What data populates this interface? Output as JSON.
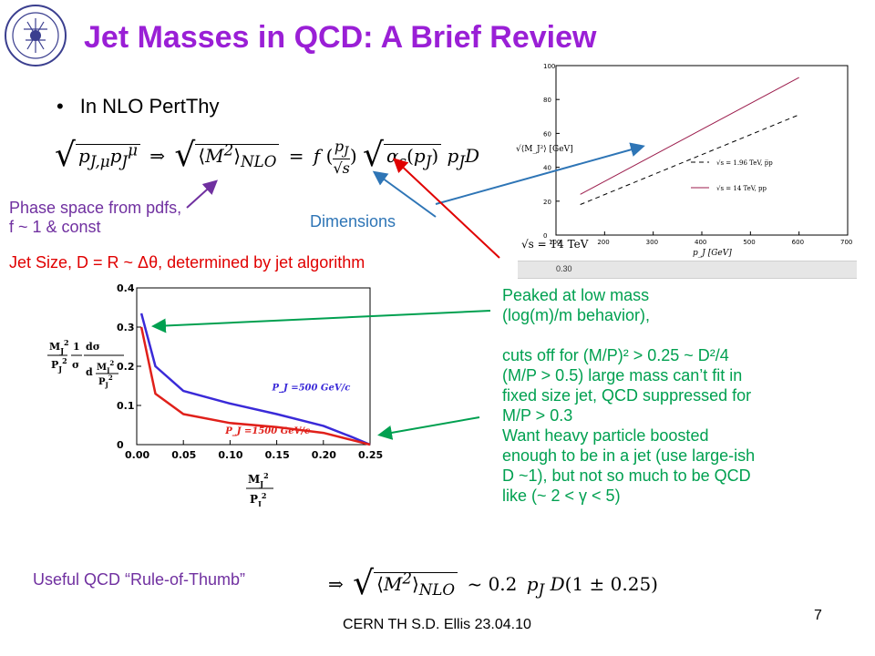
{
  "slide": {
    "title": "Jet Masses in QCD:  A Brief Review",
    "bullet": "In NLO PertThy",
    "annotations": {
      "phase_space": [
        "Phase space from pdfs,",
        "f ~ 1 & const"
      ],
      "dimensions": "Dimensions",
      "jet_size": "Jet Size, D = R ~ Δθ, determined by jet algorithm"
    },
    "right_text": [
      "Peaked at low mass",
      "(log(m)/m behavior),",
      "",
      "cuts off for (M/P)² > 0.25 ~ D²/4",
      "(M/P > 0.5) large mass can’t fit in",
      "fixed size jet, QCD suppressed for",
      "M/P > 0.3",
      "Want heavy particle boosted",
      "enough to be in a jet (use large-ish",
      "D ~1), but not so much to be QCD",
      "like (~ 2 < γ < 5)"
    ],
    "rule_label": "Useful QCD “Rule-of-Thumb”",
    "footer": "CERN TH     S.D. Ellis     23.04.10",
    "page_number": "7",
    "ruler_label": "0.30",
    "colors": {
      "title": "#9a1fd6",
      "purple": "#7030a0",
      "blue": "#2e75b6",
      "red": "#e00000",
      "green": "#00a050"
    }
  },
  "chart_data": [
    {
      "type": "line",
      "ylabel": "√⟨M_J²⟩ [GeV]",
      "xlabel": "p_J [GeV]",
      "xlim": [
        100,
        700
      ],
      "ylim": [
        0,
        100
      ],
      "xticks": [
        100,
        200,
        300,
        400,
        500,
        600,
        700
      ],
      "yticks": [
        0,
        20,
        40,
        60,
        80,
        100
      ],
      "grid": false,
      "legend_position": "right",
      "series": [
        {
          "name": "√s = 1.96 TeV, p̅p",
          "x": [
            150,
            600
          ],
          "y": [
            18,
            71
          ]
        },
        {
          "name": "√s = 14 TeV, pp",
          "x": [
            150,
            600
          ],
          "y": [
            24,
            93
          ]
        }
      ],
      "annotation": "√s = 14 TeV"
    },
    {
      "type": "line",
      "ylabel_parts": {
        "a": "M",
        "b": "P",
        "c": "1",
        "d": "σ",
        "e": "dσ",
        "f": "d"
      },
      "xlabel_parts": {
        "num": "M",
        "den": "P"
      },
      "xlim": [
        0,
        0.25
      ],
      "ylim": [
        0,
        0.4
      ],
      "xticks": [
        "0.00",
        "0.05",
        "0.10",
        "0.15",
        "0.20",
        "0.25"
      ],
      "yticks": [
        "0",
        "0.1",
        "0.2",
        "0.3",
        "0.4"
      ],
      "grid": false,
      "series": [
        {
          "name": "P_J =500 GeV/c",
          "x": [
            0.005,
            0.02,
            0.05,
            0.1,
            0.15,
            0.2,
            0.23,
            0.25
          ],
          "y": [
            0.335,
            0.2,
            0.137,
            0.105,
            0.078,
            0.048,
            0.02,
            0.0
          ]
        },
        {
          "name": "P_J =1500 GeV/c",
          "x": [
            0.005,
            0.02,
            0.05,
            0.1,
            0.15,
            0.2,
            0.23,
            0.25
          ],
          "y": [
            0.3,
            0.13,
            0.078,
            0.055,
            0.045,
            0.03,
            0.012,
            0.0
          ]
        }
      ]
    }
  ]
}
